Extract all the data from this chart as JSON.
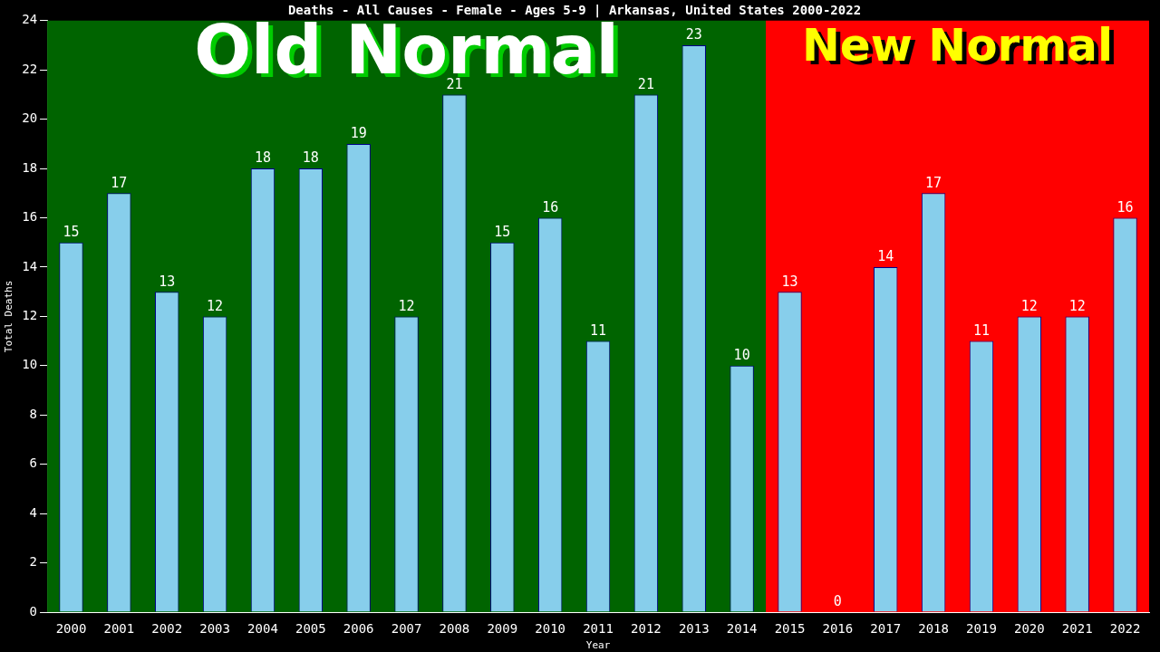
{
  "chart_data": {
    "type": "bar",
    "title": "Deaths - All Causes - Female - Ages 5-9 | Arkansas, United States 2000-2022",
    "xlabel": "Year",
    "ylabel": "Total Deaths",
    "categories": [
      "2000",
      "2001",
      "2002",
      "2003",
      "2004",
      "2005",
      "2006",
      "2007",
      "2008",
      "2009",
      "2010",
      "2011",
      "2012",
      "2013",
      "2014",
      "2015",
      "2016",
      "2017",
      "2018",
      "2019",
      "2020",
      "2021",
      "2022"
    ],
    "values": [
      15,
      17,
      13,
      12,
      18,
      18,
      19,
      12,
      21,
      15,
      16,
      11,
      21,
      23,
      10,
      13,
      0,
      14,
      17,
      11,
      12,
      12,
      16
    ],
    "color": "#87ceeb",
    "ylim": [
      0,
      24
    ],
    "yticks": [
      0,
      2,
      4,
      6,
      8,
      10,
      12,
      14,
      16,
      18,
      20,
      22,
      24
    ],
    "grid": false,
    "legend": false,
    "data_labels": true,
    "bands": [
      {
        "axis": "x",
        "from": "2000",
        "to": "2014",
        "label": "Old Normal",
        "color": "#006400"
      },
      {
        "axis": "x",
        "from": "2015",
        "to": "2022",
        "label": "New Normal",
        "color": "#ff0000"
      }
    ]
  }
}
